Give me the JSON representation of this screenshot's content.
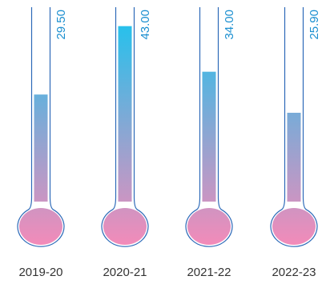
{
  "chart_data": {
    "type": "bar",
    "title": "",
    "xlabel": "",
    "ylabel": "",
    "categories": [
      "2019-20",
      "2020-21",
      "2021-22",
      "2022-23"
    ],
    "values": [
      29.5,
      43.0,
      34.0,
      25.9
    ],
    "value_labels": [
      "29.50",
      "43.00",
      "34.00",
      "25.90"
    ],
    "ylim": [
      0,
      45
    ],
    "grid": false,
    "legend": "none",
    "style": "thermometer",
    "colors": {
      "outline": "#2c69b8",
      "fill_top": "#1ec3ee",
      "fill_bottom": "#f28bb9",
      "value_label": "#1b8fd0"
    }
  }
}
